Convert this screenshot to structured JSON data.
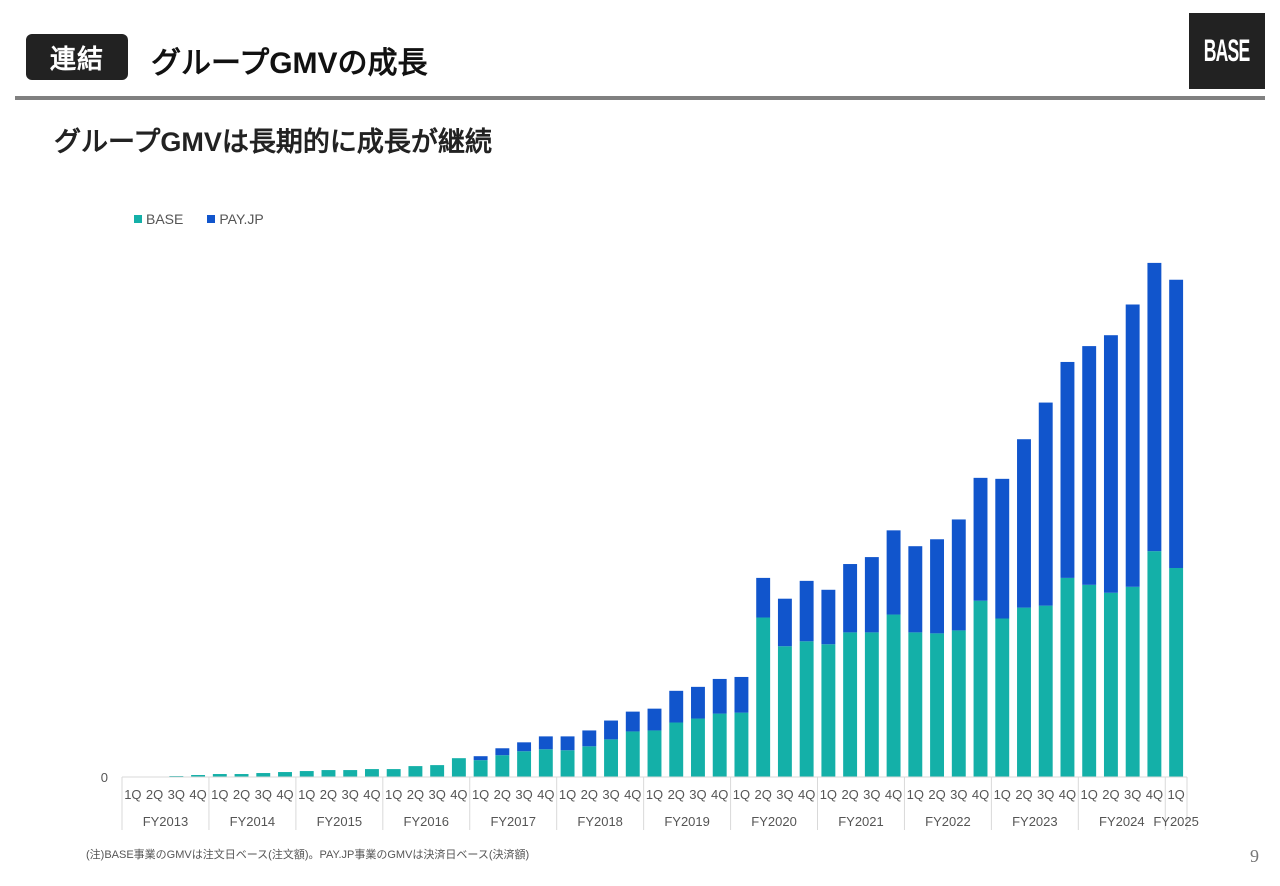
{
  "header": {
    "badge": "連結",
    "title": "グループGMVの成長",
    "logo": "BASE"
  },
  "subtitle": "グループGMVは長期的に成長が継続",
  "footer": {
    "note": "(注)BASE事業のGMVは注文日ベース(注文額)。PAY.JP事業のGMVは決済日ベース(決済額)",
    "page_number": "9"
  },
  "chart_data": {
    "type": "bar",
    "stacked": true,
    "title": "",
    "xlabel": "",
    "ylabel": "",
    "y_tick_labels": [
      "0"
    ],
    "ylim": [
      0,
      530
    ],
    "units": "relative (no y-axis scale shown)",
    "grid": false,
    "legend_position": "top-left",
    "colors": {
      "BASE": "#14b0a8",
      "PAY.JP": "#1155cc"
    },
    "fiscal_years": [
      {
        "label": "FY2013",
        "quarters": 4
      },
      {
        "label": "FY2014",
        "quarters": 4
      },
      {
        "label": "FY2015",
        "quarters": 4
      },
      {
        "label": "FY2016",
        "quarters": 4
      },
      {
        "label": "FY2017",
        "quarters": 4
      },
      {
        "label": "FY2018",
        "quarters": 4
      },
      {
        "label": "FY2019",
        "quarters": 4
      },
      {
        "label": "FY2020",
        "quarters": 4
      },
      {
        "label": "FY2021",
        "quarters": 4
      },
      {
        "label": "FY2022",
        "quarters": 4
      },
      {
        "label": "FY2023",
        "quarters": 4
      },
      {
        "label": "FY2024",
        "quarters": 4
      },
      {
        "label": "FY2025",
        "quarters": 1
      }
    ],
    "categories": [
      "1Q",
      "2Q",
      "3Q",
      "4Q",
      "1Q",
      "2Q",
      "3Q",
      "4Q",
      "1Q",
      "2Q",
      "3Q",
      "4Q",
      "1Q",
      "2Q",
      "3Q",
      "4Q",
      "1Q",
      "2Q",
      "3Q",
      "4Q",
      "1Q",
      "2Q",
      "3Q",
      "4Q",
      "1Q",
      "2Q",
      "3Q",
      "4Q",
      "1Q",
      "2Q",
      "3Q",
      "4Q",
      "1Q",
      "2Q",
      "3Q",
      "4Q",
      "1Q",
      "2Q",
      "3Q",
      "4Q",
      "1Q",
      "2Q",
      "3Q",
      "4Q",
      "1Q",
      "2Q",
      "3Q",
      "4Q",
      "1Q"
    ],
    "series": [
      {
        "name": "BASE",
        "values": [
          0.5,
          0.5,
          1,
          2,
          3,
          3,
          4,
          5,
          6,
          7,
          7,
          8,
          8,
          11,
          12,
          19,
          17,
          22,
          26,
          28,
          27,
          31,
          38,
          46,
          47,
          55,
          59,
          64,
          65,
          161,
          132,
          137,
          134,
          146,
          146,
          164,
          146,
          145,
          148,
          178,
          160,
          171,
          173,
          201,
          194,
          186,
          192,
          228,
          211
        ]
      },
      {
        "name": "PAY.JP",
        "values": [
          0,
          0,
          0,
          0,
          0,
          0,
          0,
          0,
          0,
          0,
          0,
          0,
          0,
          0,
          0,
          0,
          4,
          7,
          9,
          13,
          14,
          16,
          19,
          20,
          22,
          32,
          32,
          35,
          36,
          40,
          48,
          61,
          55,
          69,
          76,
          85,
          87,
          95,
          112,
          124,
          141,
          170,
          205,
          218,
          241,
          260,
          285,
          291,
          291
        ]
      }
    ]
  }
}
